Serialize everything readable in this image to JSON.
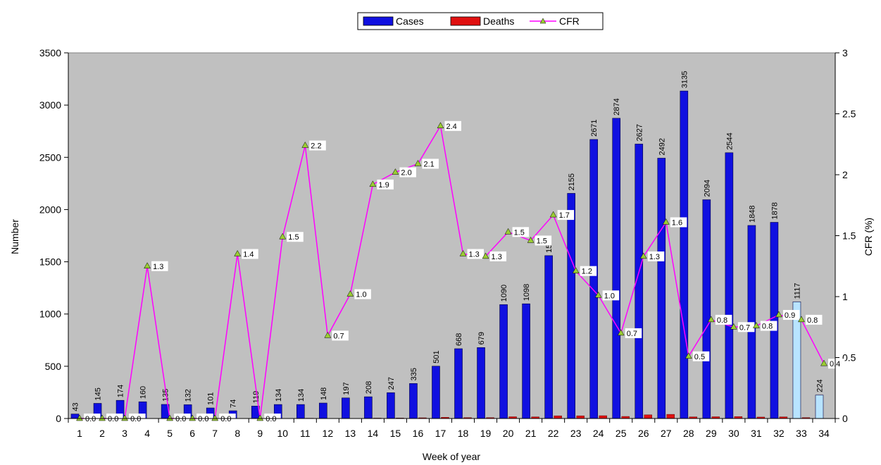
{
  "chart_data": {
    "type": "bar",
    "categories": [
      "1",
      "2",
      "3",
      "4",
      "5",
      "6",
      "7",
      "8",
      "9",
      "10",
      "11",
      "12",
      "13",
      "14",
      "15",
      "16",
      "17",
      "18",
      "19",
      "20",
      "21",
      "22",
      "23",
      "24",
      "25",
      "26",
      "27",
      "28",
      "29",
      "30",
      "31",
      "32",
      "33",
      "34"
    ],
    "series": [
      {
        "name": "Cases",
        "type": "bar",
        "axis": "left",
        "color": "#1010e0",
        "values": [
          43,
          145,
          174,
          160,
          135,
          132,
          101,
          74,
          119,
          134,
          134,
          148,
          197,
          208,
          247,
          335,
          501,
          668,
          679,
          1090,
          1098,
          1559,
          2155,
          2671,
          2874,
          2627,
          2492,
          3135,
          2094,
          2544,
          1848,
          1878,
          1117,
          224
        ],
        "labels": [
          "43",
          "145",
          "174",
          "160",
          "135",
          "132",
          "101",
          "74",
          "119",
          "134",
          "134",
          "148",
          "197",
          "208",
          "247",
          "335",
          "501",
          "668",
          "679",
          "1090",
          "1098",
          "1559",
          "2155",
          "2671",
          "2874",
          "2627",
          "2492",
          "3135",
          "2094",
          "2544",
          "1848",
          "1878",
          "1117",
          "224"
        ],
        "highlight_color": "#b8e4ff",
        "highlight_categories": [
          "33",
          "34"
        ]
      },
      {
        "name": "Deaths",
        "type": "bar",
        "axis": "left",
        "color": "#e01010",
        "values": [
          0,
          0,
          0,
          2,
          0,
          0,
          0,
          1,
          0,
          2,
          3,
          1,
          2,
          4,
          5,
          7,
          12,
          9,
          9,
          17,
          16,
          26,
          26,
          27,
          20,
          35,
          40,
          16,
          17,
          19,
          14,
          16,
          9,
          1
        ]
      },
      {
        "name": "CFR",
        "type": "line",
        "axis": "right",
        "color": "#ff00ff",
        "marker_color": "#9acd32",
        "values": [
          0.0,
          0.0,
          0.0,
          1.25,
          0.0,
          0.0,
          0.0,
          1.35,
          0.0,
          1.49,
          2.24,
          0.68,
          1.02,
          1.92,
          2.02,
          2.09,
          2.4,
          1.35,
          1.33,
          1.53,
          1.46,
          1.67,
          1.21,
          1.01,
          0.7,
          1.33,
          1.61,
          0.51,
          0.81,
          0.75,
          0.76,
          0.85,
          0.81,
          0.45
        ],
        "labels": [
          "0.0",
          "0.0",
          "0.0",
          "1.3",
          "0.0",
          "0.0",
          "0.0",
          "1.4",
          "0.0",
          "1.5",
          "2.2",
          "0.7",
          "1.0",
          "1.9",
          "2.0",
          "2.1",
          "2.4",
          "1.3",
          "1.3",
          "1.5",
          "1.5",
          "1.7",
          "1.2",
          "1.0",
          "0.7",
          "1.3",
          "1.6",
          "0.5",
          "0.8",
          "0.7",
          "0.8",
          "0.9",
          "0.8",
          "0.4"
        ]
      }
    ],
    "xlabel": "Week of year",
    "ylabel": "Number",
    "y2label": "CFR (%)",
    "ylim": [
      0,
      3500
    ],
    "y2lim": [
      0,
      3
    ],
    "yticks": [
      0,
      500,
      1000,
      1500,
      2000,
      2500,
      3000,
      3500
    ],
    "y2ticks": [
      0,
      0.5,
      1,
      1.5,
      2,
      2.5,
      3
    ],
    "y2ticklabels": [
      "0",
      "0.5",
      "1",
      "1.5",
      "2",
      "2.5",
      "3"
    ],
    "plot_background": "#c0c0c0",
    "grid": false,
    "legend_position": "top-center"
  }
}
